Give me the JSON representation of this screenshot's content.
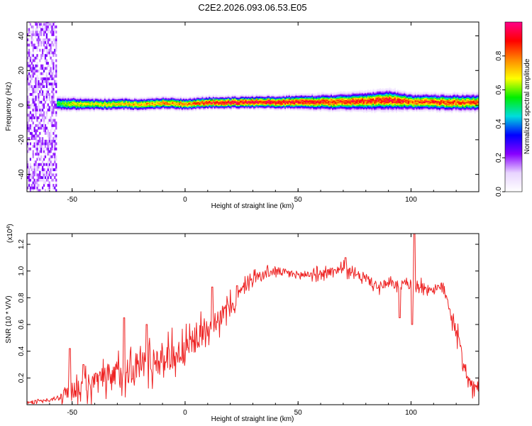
{
  "title": "C2E2.2026.093.06.53.E05",
  "chart_data": [
    {
      "type": "heatmap",
      "name": "spectrogram",
      "xlabel": "Height of straight line (km)",
      "ylabel": "Frequency (Hz)",
      "xlim": [
        -70,
        130
      ],
      "ylim": [
        -50,
        48
      ],
      "xticks": [
        -50,
        0,
        50,
        100
      ],
      "yticks": [
        -40,
        -20,
        0,
        20,
        40
      ],
      "xtick_labels": [
        "-50",
        "0",
        "50",
        "100"
      ],
      "ytick_labels": [
        "-40",
        "-20",
        "0",
        "20",
        "40"
      ],
      "colorbar": {
        "label": "Normalized spectral amplitude",
        "range": [
          0,
          1
        ],
        "ticks": [
          0.0,
          0.2,
          0.4,
          0.6,
          0.8
        ],
        "tick_labels": [
          "0.0",
          "0.2",
          "0.4",
          "0.6",
          "0.8"
        ],
        "colormap": [
          "#ffffff",
          "#e8d4ff",
          "#8800ff",
          "#0000ff",
          "#00dddd",
          "#00ee00",
          "#ffff00",
          "#ff8800",
          "#ff0000",
          "#ff0088"
        ]
      },
      "band": {
        "center_freq": [
          [
            -57,
            0.5
          ],
          [
            -50,
            0.5
          ],
          [
            -40,
            0.3
          ],
          [
            -30,
            0.5
          ],
          [
            -20,
            0.3
          ],
          [
            -10,
            1.0
          ],
          [
            0,
            0.4
          ],
          [
            10,
            1.2
          ],
          [
            20,
            1.4
          ],
          [
            30,
            1.5
          ],
          [
            40,
            1.5
          ],
          [
            50,
            1.6
          ],
          [
            60,
            1.6
          ],
          [
            70,
            1.7
          ],
          [
            80,
            2.0
          ],
          [
            90,
            2.7
          ],
          [
            100,
            1.6
          ],
          [
            110,
            1.5
          ],
          [
            130,
            1.3
          ]
        ],
        "half_width_hz": [
          [
            -57,
            3.5
          ],
          [
            -40,
            3.0
          ],
          [
            -20,
            3.0
          ],
          [
            0,
            3.0
          ],
          [
            20,
            3.0
          ],
          [
            40,
            3.2
          ],
          [
            60,
            3.8
          ],
          [
            80,
            4.5
          ],
          [
            90,
            5.0
          ],
          [
            100,
            4.0
          ],
          [
            110,
            4.0
          ],
          [
            130,
            4.2
          ]
        ],
        "peak_amplitude": [
          [
            -57,
            0.55
          ],
          [
            -50,
            0.7
          ],
          [
            -40,
            0.7
          ],
          [
            -25,
            0.75
          ],
          [
            -10,
            0.8
          ],
          [
            0,
            0.8
          ],
          [
            10,
            0.9
          ],
          [
            20,
            0.95
          ],
          [
            40,
            0.95
          ],
          [
            60,
            0.9
          ],
          [
            80,
            0.9
          ],
          [
            90,
            0.95
          ],
          [
            100,
            0.85
          ],
          [
            110,
            0.9
          ],
          [
            130,
            0.85
          ]
        ],
        "noise_region_km": [
          -70,
          -57
        ]
      }
    },
    {
      "type": "line",
      "name": "snr",
      "xlabel": "Height of straight line (km)",
      "ylabel": "SNR (10 * V/V)",
      "multiplier_label": "(x10",
      "multiplier_exp": "4",
      "multiplier_close": ")",
      "xlim": [
        -70,
        130
      ],
      "ylim": [
        0,
        1.28
      ],
      "xticks": [
        -50,
        0,
        50,
        100
      ],
      "yticks": [
        0.2,
        0.4,
        0.6,
        0.8,
        1.0,
        1.2
      ],
      "xtick_labels": [
        "-50",
        "0",
        "50",
        "100"
      ],
      "ytick_labels": [
        "0.2",
        "0.4",
        "0.6",
        "0.8",
        "1.0",
        "1.2"
      ],
      "series_color": "#ee2222",
      "trend": [
        [
          -70,
          0.02
        ],
        [
          -60,
          0.03
        ],
        [
          -55,
          0.06
        ],
        [
          -50,
          0.12
        ],
        [
          -40,
          0.16
        ],
        [
          -30,
          0.22
        ],
        [
          -20,
          0.3
        ],
        [
          -10,
          0.35
        ],
        [
          0,
          0.4
        ],
        [
          10,
          0.58
        ],
        [
          20,
          0.72
        ],
        [
          25,
          0.85
        ],
        [
          30,
          0.95
        ],
        [
          40,
          1.0
        ],
        [
          50,
          0.97
        ],
        [
          60,
          0.98
        ],
        [
          70,
          1.02
        ],
        [
          75,
          0.97
        ],
        [
          80,
          0.95
        ],
        [
          85,
          0.88
        ],
        [
          90,
          0.9
        ],
        [
          100,
          0.9
        ],
        [
          110,
          0.86
        ],
        [
          115,
          0.88
        ],
        [
          118,
          0.65
        ],
        [
          120,
          0.55
        ],
        [
          125,
          0.2
        ],
        [
          128,
          0.1
        ],
        [
          130,
          0.15
        ]
      ],
      "noise_amplitude": [
        [
          -70,
          0.01
        ],
        [
          -57,
          0.02
        ],
        [
          -55,
          0.06
        ],
        [
          -50,
          0.1
        ],
        [
          -30,
          0.16
        ],
        [
          -10,
          0.16
        ],
        [
          10,
          0.12
        ],
        [
          20,
          0.1
        ],
        [
          30,
          0.05
        ],
        [
          50,
          0.04
        ],
        [
          80,
          0.05
        ],
        [
          110,
          0.05
        ],
        [
          120,
          0.08
        ],
        [
          130,
          0.06
        ]
      ],
      "spikes": [
        [
          -51,
          0.42
        ],
        [
          -45,
          0.3
        ],
        [
          -27,
          0.65
        ],
        [
          -17,
          0.6
        ],
        [
          12,
          0.88
        ],
        [
          23,
          0.89
        ],
        [
          71,
          1.1
        ],
        [
          101.5,
          1.28
        ],
        [
          100.5,
          0.6
        ],
        [
          95,
          0.65
        ]
      ]
    }
  ]
}
